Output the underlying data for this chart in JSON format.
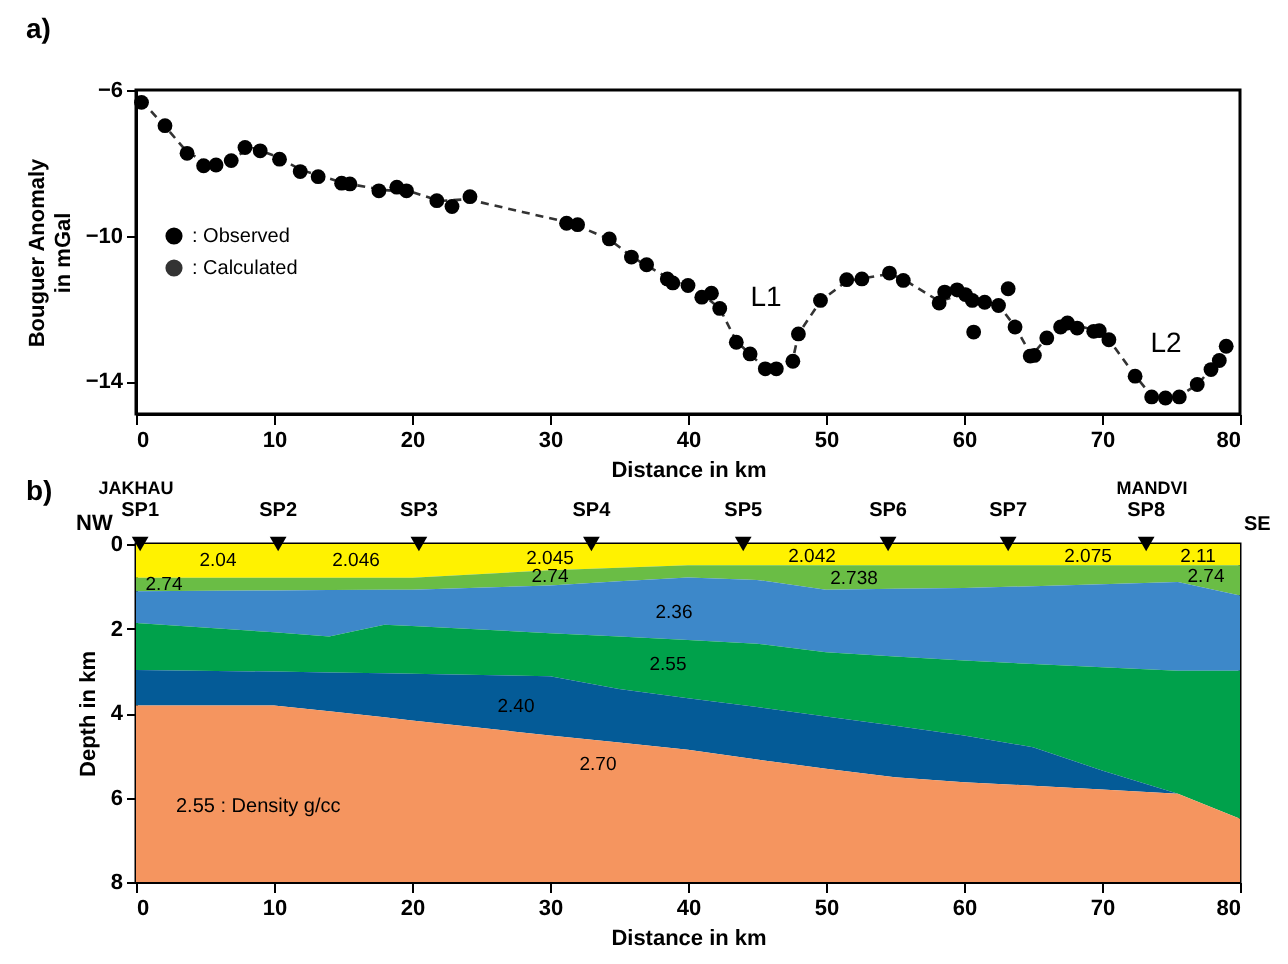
{
  "chart_data": [
    {
      "type": "scatter",
      "xlabel": "Distance in km",
      "ylabel": "Bouguer Anomaly\nin mGal",
      "xlim": [
        0,
        80
      ],
      "ylim": [
        -14.9,
        -6
      ],
      "xticks": [
        0,
        10,
        20,
        30,
        40,
        50,
        60,
        70,
        80
      ],
      "yticks": [
        -6,
        -10,
        -14
      ],
      "legend": "left",
      "series": [
        {
          "name": ": Observed",
          "marker": "circle",
          "color": "#000000",
          "x": [
            0.4,
            2.1,
            3.7,
            4.9,
            5.8,
            6.9,
            7.9,
            9.0,
            10.4,
            11.9,
            13.2,
            14.9,
            15.5,
            17.6,
            18.9,
            19.6,
            21.8,
            22.9,
            24.2,
            31.2,
            32.0,
            34.3,
            35.9,
            37.0,
            38.5,
            38.9,
            40.0,
            41.0,
            41.7,
            42.3,
            43.5,
            44.5,
            45.6,
            46.4,
            47.6,
            48.0,
            49.6,
            51.5,
            52.6,
            54.6,
            55.6,
            58.2,
            58.6,
            59.5,
            60.1,
            60.6,
            60.7,
            61.5,
            62.5,
            63.2,
            63.7,
            64.8,
            65.1,
            66.0,
            67.0,
            67.5,
            68.2,
            69.4,
            69.8,
            70.5,
            72.4,
            73.6,
            74.6,
            75.6,
            76.9,
            77.9,
            78.5,
            79.0
          ],
          "values": [
            -6.34,
            -6.98,
            -7.74,
            -8.08,
            -8.06,
            -7.94,
            -7.58,
            -7.67,
            -7.9,
            -8.24,
            -8.38,
            -8.56,
            -8.58,
            -8.77,
            -8.67,
            -8.77,
            -9.04,
            -9.2,
            -8.93,
            -9.66,
            -9.7,
            -10.09,
            -10.59,
            -10.8,
            -11.19,
            -11.3,
            -11.37,
            -11.69,
            -11.58,
            -12.0,
            -12.93,
            -13.25,
            -13.66,
            -13.66,
            -13.45,
            -12.7,
            -11.78,
            -11.21,
            -11.19,
            -11.03,
            -11.23,
            -11.85,
            -11.55,
            -11.49,
            -11.62,
            -11.78,
            -12.65,
            -11.83,
            -11.92,
            -11.46,
            -12.51,
            -13.31,
            -13.29,
            -12.81,
            -12.51,
            -12.4,
            -12.54,
            -12.63,
            -12.61,
            -12.86,
            -13.86,
            -14.43,
            -14.46,
            -14.43,
            -14.09,
            -13.68,
            -13.43,
            -13.04
          ]
        },
        {
          "name": ": Calculated",
          "type": "line",
          "line_style": "dashed",
          "color": "#333333",
          "x": [
            0.4,
            2.1,
            3.7,
            5.3,
            7.0,
            8.5,
            10.0,
            12.0,
            15.0,
            18.0,
            20.0,
            22.0,
            24.0,
            28.0,
            31.5,
            34.3,
            36.0,
            38.5,
            41.0,
            42.3,
            43.5,
            45.6,
            46.5,
            47.6,
            48.0,
            49.6,
            51.5,
            54.6,
            55.6,
            58.2,
            60.0,
            62.5,
            63.7,
            64.9,
            66.0,
            67.5,
            70.0,
            70.5,
            72.4,
            73.6,
            75.6,
            76.9,
            78.5,
            79.0
          ],
          "values": [
            -6.3,
            -7.0,
            -7.7,
            -8.05,
            -7.85,
            -7.6,
            -7.8,
            -8.2,
            -8.55,
            -8.75,
            -8.8,
            -9.05,
            -9.0,
            -9.35,
            -9.65,
            -10.1,
            -10.6,
            -11.15,
            -11.6,
            -12.0,
            -12.9,
            -13.65,
            -13.65,
            -13.4,
            -12.7,
            -11.8,
            -11.25,
            -11.05,
            -11.2,
            -11.8,
            -11.6,
            -11.9,
            -12.5,
            -13.3,
            -12.8,
            -12.4,
            -12.65,
            -12.85,
            -13.85,
            -14.4,
            -14.4,
            -14.1,
            -13.4,
            -13.0
          ]
        }
      ],
      "annotations": [
        "a)",
        "L1",
        "L2"
      ]
    },
    {
      "type": "area",
      "stacked": true,
      "xlabel": "Distance in km",
      "ylabel": "Depth in km",
      "xlim": [
        0,
        80
      ],
      "ylim": [
        8,
        0
      ],
      "xticks": [
        0,
        10,
        20,
        30,
        40,
        50,
        60,
        70,
        80
      ],
      "yticks": [
        0,
        2,
        4,
        6,
        8
      ],
      "x": [
        0,
        10,
        14,
        18,
        20,
        30,
        35,
        40,
        45,
        50,
        55,
        60,
        65,
        70,
        75.5,
        80
      ],
      "series": [
        {
          "color": "#fff200",
          "values": [
            0.8,
            0.8,
            0.8,
            0.8,
            0.8,
            0.62,
            0.56,
            0.5,
            0.5,
            0.5,
            0.5,
            0.5,
            0.5,
            0.5,
            0.5,
            0.5
          ]
        },
        {
          "color": "#6abd45",
          "values": [
            0.32,
            0.3,
            0.29,
            0.28,
            0.28,
            0.36,
            0.32,
            0.29,
            0.35,
            0.58,
            0.56,
            0.54,
            0.5,
            0.45,
            0.4,
            0.72
          ]
        },
        {
          "color": "#3d88c9",
          "values": [
            0.75,
            0.99,
            1.1,
            0.83,
            0.86,
            1.13,
            1.31,
            1.48,
            1.51,
            1.48,
            1.6,
            1.72,
            1.84,
            1.97,
            2.1,
            1.78
          ]
        },
        {
          "color": "#00a14b",
          "values": [
            1.11,
            0.93,
            0.85,
            1.15,
            1.13,
            1.02,
            1.24,
            1.38,
            1.5,
            1.52,
            1.64,
            1.77,
            1.97,
            2.44,
            2.91,
            3.5
          ]
        },
        {
          "color": "#045b97",
          "values": [
            0.84,
            0.8,
            0.92,
            1.04,
            1.11,
            1.4,
            1.27,
            1.22,
            1.24,
            1.24,
            1.22,
            1.11,
            0.91,
            0.45,
            0,
            0
          ]
        },
        {
          "color": "#f5955f",
          "values": [
            4.18,
            4.18,
            4.04,
            3.9,
            3.82,
            3.47,
            3.3,
            3.13,
            2.9,
            2.68,
            2.48,
            2.36,
            2.28,
            2.19,
            2.09,
            1.5
          ]
        },
        {
          "type": "scatter",
          "marker": "triangle",
          "color": "#000000",
          "x": [
            0.3,
            10.3,
            20.5,
            33,
            44,
            54.5,
            63.2,
            73.2
          ],
          "values": [
            0,
            0,
            0,
            0,
            0,
            0,
            0,
            0
          ],
          "value_labels": [
            "SP1",
            "SP2",
            "SP3",
            "SP4",
            "SP5",
            "SP6",
            "SP7",
            "SP8"
          ]
        }
      ],
      "annotations": [
        "b)",
        "NW",
        "SE",
        "2.55 : Density g/cc",
        "JAKHAU",
        "MANDVI",
        "2.04",
        "2.046",
        "2.045",
        "2.042",
        "2.075",
        "2.11",
        "2.74",
        "2.74",
        "2.738",
        "2.74",
        "2.36",
        "2.55",
        "2.40",
        "2.70"
      ]
    }
  ]
}
